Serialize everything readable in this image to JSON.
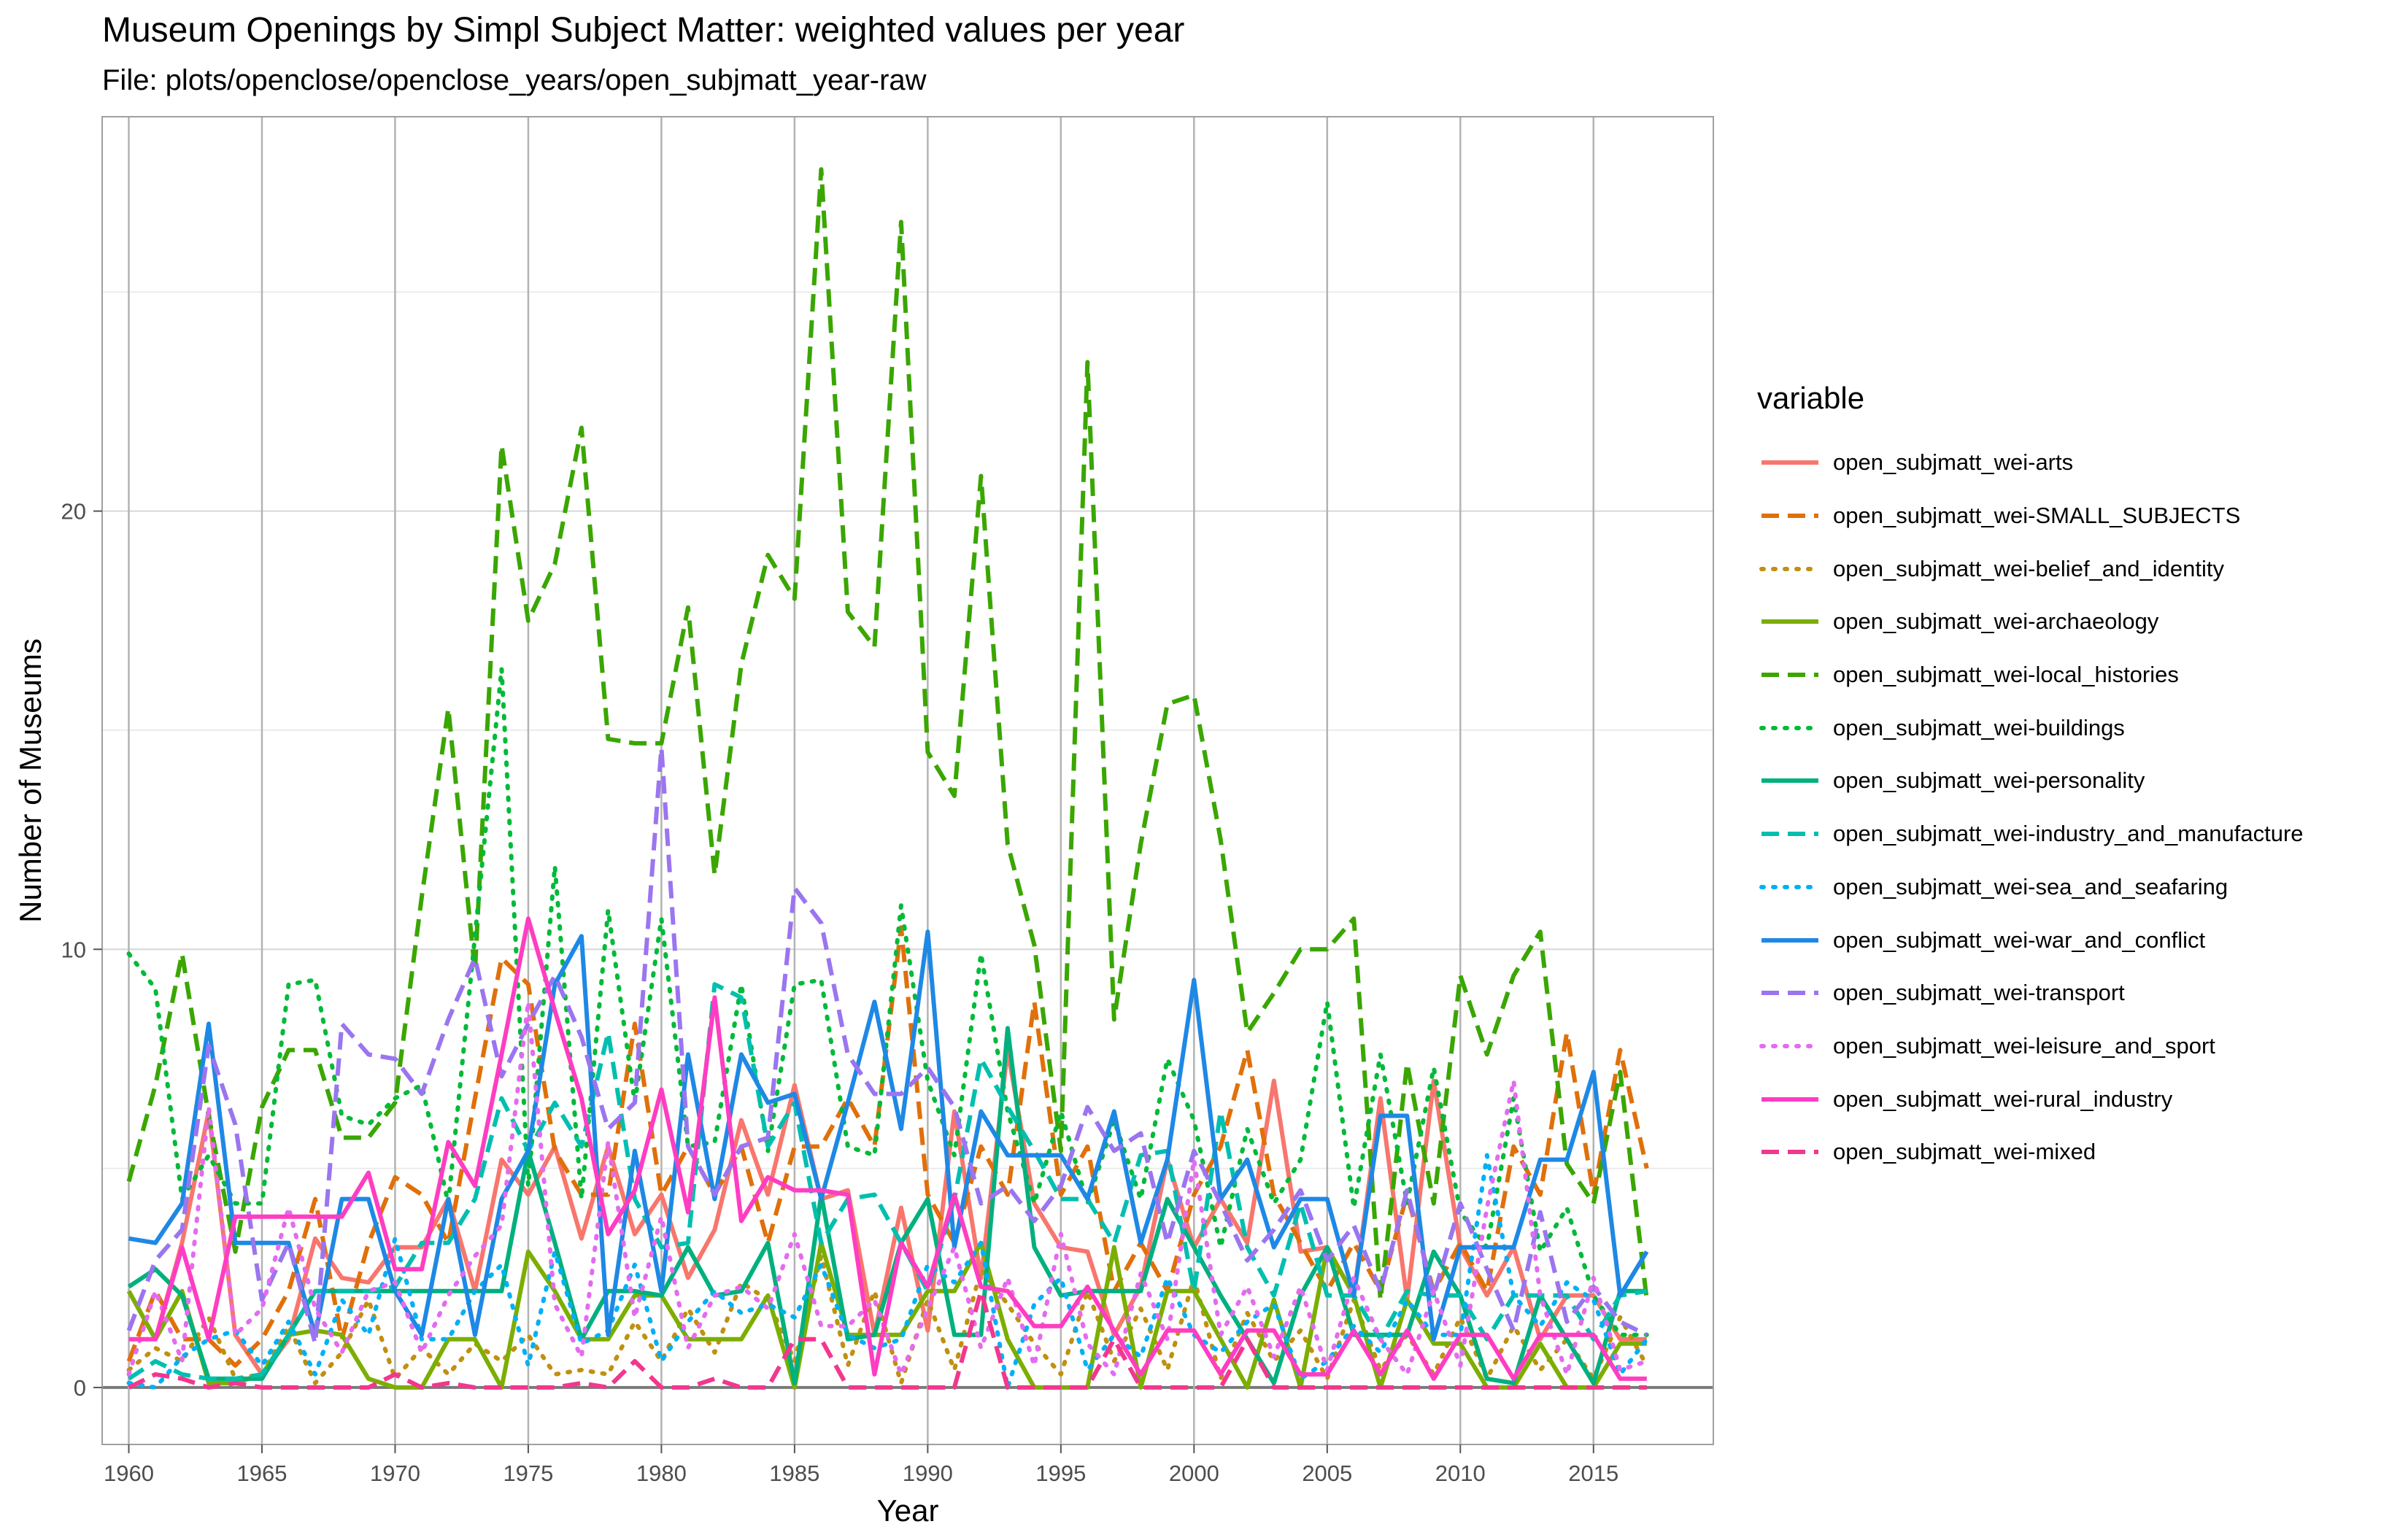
{
  "title": "Museum Openings by Simpl Subject Matter: weighted values per year",
  "subtitle": "File: plots/openclose/openclose_years/open_subjmatt_year-raw",
  "legend_title": "variable",
  "chart_data": {
    "type": "line",
    "xlabel": "Year",
    "ylabel": "Number of Museums",
    "xlim": [
      1959,
      2019.5
    ],
    "ylim": [
      -1.3,
      29
    ],
    "xticks": [
      1960,
      1965,
      1970,
      1975,
      1980,
      1985,
      1990,
      1995,
      2000,
      2005,
      2010,
      2015
    ],
    "yticks": [
      0,
      10,
      20
    ],
    "grid": true,
    "legend_position": "right",
    "x": [
      1960,
      1961,
      1962,
      1963,
      1964,
      1965,
      1966,
      1967,
      1968,
      1969,
      1970,
      1971,
      1972,
      1973,
      1974,
      1975,
      1976,
      1977,
      1978,
      1979,
      1980,
      1981,
      1982,
      1983,
      1984,
      1985,
      1986,
      1987,
      1988,
      1989,
      1990,
      1991,
      1992,
      1993,
      1994,
      1995,
      1996,
      1997,
      1998,
      1999,
      2000,
      2001,
      2002,
      2003,
      2004,
      2005,
      2006,
      2007,
      2008,
      2009,
      2010,
      2011,
      2012,
      2013,
      2014,
      2015,
      2016,
      2017
    ],
    "series": [
      {
        "name": "open_subjmatt_wei-arts",
        "color": "#F8766D",
        "dash": "solid",
        "values": [
          2.2,
          1.1,
          3.3,
          6.3,
          1.2,
          0.3,
          1.1,
          3.4,
          2.5,
          2.4,
          3.2,
          3.2,
          4.3,
          2.2,
          5.2,
          4.4,
          5.5,
          3.4,
          5.5,
          3.5,
          4.4,
          2.5,
          3.6,
          6.1,
          4.4,
          6.9,
          4.3,
          4.5,
          1.2,
          4.1,
          1.3,
          6.3,
          2.5,
          7.7,
          4.2,
          3.2,
          3.1,
          1.2,
          2.3,
          5.2,
          3.2,
          4.3,
          3.3,
          7.0,
          3.1,
          3.2,
          2.1,
          6.6,
          2.0,
          7.0,
          3.2,
          2.1,
          3.2,
          1.1,
          2.1,
          2.1,
          1.1,
          1.1
        ]
      },
      {
        "name": "open_subjmatt_wei-SMALL_SUBJECTS",
        "color": "#E0700A",
        "dash": "long",
        "values": [
          0.6,
          2.2,
          1.1,
          1.1,
          0.5,
          1.1,
          2.2,
          4.3,
          1.1,
          3.3,
          4.8,
          4.4,
          3.3,
          6.6,
          9.8,
          9.2,
          5.4,
          4.4,
          4.4,
          8.3,
          4.4,
          5.5,
          4.4,
          5.5,
          3.3,
          5.5,
          5.5,
          6.6,
          5.5,
          10.5,
          4.4,
          3.3,
          5.5,
          4.4,
          8.8,
          4.4,
          5.5,
          2.2,
          3.3,
          2.2,
          4.4,
          5.5,
          7.7,
          4.4,
          3.3,
          2.2,
          3.3,
          2.2,
          4.4,
          2.2,
          3.3,
          2.2,
          5.5,
          4.4,
          8.1,
          4.4,
          7.7,
          5.0
        ]
      },
      {
        "name": "open_subjmatt_wei-belief_and_identity",
        "color": "#C09010",
        "dash": "dotted",
        "values": [
          0.4,
          0.9,
          0.6,
          1.6,
          0.2,
          0.3,
          1.4,
          0.1,
          0.8,
          2.0,
          0.2,
          0.9,
          0.3,
          1.0,
          0.6,
          1.2,
          0.3,
          0.4,
          0.3,
          1.5,
          0.6,
          1.8,
          0.8,
          2.4,
          2.0,
          0.6,
          3.0,
          0.5,
          2.2,
          0.1,
          2.0,
          0.4,
          2.7,
          1.9,
          1.0,
          0.3,
          2.2,
          0.6,
          1.8,
          0.4,
          2.5,
          0.2,
          1.7,
          0.6,
          1.3,
          0.2,
          2.0,
          0.4,
          1.2,
          0.3,
          1.6,
          0.2,
          1.4,
          0.4,
          1.1,
          0.2,
          1.6,
          0.5
        ]
      },
      {
        "name": "open_subjmatt_wei-archaeology",
        "color": "#7CAE00",
        "dash": "solid",
        "values": [
          2.2,
          1.1,
          2.2,
          0.1,
          0.1,
          0.3,
          1.2,
          1.3,
          1.2,
          0.2,
          0.0,
          0.0,
          1.1,
          1.1,
          0.0,
          3.1,
          2.2,
          1.1,
          1.1,
          2.1,
          2.1,
          1.1,
          1.1,
          1.1,
          2.1,
          0.0,
          3.3,
          1.2,
          1.2,
          1.2,
          2.2,
          2.2,
          3.3,
          1.1,
          0.0,
          0.0,
          0.0,
          3.2,
          0.0,
          2.2,
          2.2,
          1.1,
          0.0,
          2.0,
          0.0,
          3.2,
          2.1,
          0.0,
          2.0,
          1.0,
          1.0,
          0.0,
          0.0,
          1.0,
          0.0,
          0.0,
          1.0,
          1.0
        ]
      },
      {
        "name": "open_subjmatt_wei-local_histories",
        "color": "#3AA600",
        "dash": "long",
        "values": [
          4.7,
          6.9,
          9.9,
          6.2,
          3.1,
          6.4,
          7.7,
          7.7,
          5.7,
          5.7,
          6.5,
          11.2,
          15.5,
          9.5,
          21.5,
          17.5,
          18.8,
          21.9,
          14.8,
          14.7,
          14.7,
          17.8,
          11.7,
          16.5,
          19.0,
          18.0,
          27.8,
          17.7,
          16.9,
          26.6,
          14.5,
          13.5,
          20.8,
          12.4,
          10.1,
          5.4,
          23.4,
          8.4,
          12.4,
          15.6,
          15.8,
          12.5,
          8.1,
          9.0,
          10.0,
          10.0,
          10.7,
          2.0,
          7.4,
          4.2,
          9.4,
          7.6,
          9.4,
          10.4,
          5.1,
          4.2,
          7.2,
          2.0
        ]
      },
      {
        "name": "open_subjmatt_wei-buildings",
        "color": "#00BA38",
        "dash": "dotted",
        "values": [
          9.9,
          9.1,
          4.3,
          5.3,
          4.2,
          4.2,
          9.2,
          9.3,
          6.2,
          6.0,
          6.6,
          6.9,
          4.2,
          10.3,
          16.4,
          4.6,
          11.9,
          4.3,
          10.9,
          6.5,
          10.7,
          5.5,
          5.6,
          9.2,
          5.4,
          9.2,
          9.3,
          5.5,
          5.3,
          11.0,
          7.0,
          5.3,
          9.9,
          6.3,
          4.2,
          6.3,
          4.2,
          6.1,
          4.3,
          7.5,
          6.1,
          3.2,
          5.9,
          4.2,
          5.2,
          8.8,
          4.1,
          7.6,
          4.2,
          7.3,
          4.0,
          3.2,
          6.6,
          3.1,
          4.1,
          2.1,
          1.2,
          1.2
        ]
      },
      {
        "name": "open_subjmatt_wei-personality",
        "color": "#00B07E",
        "dash": "solid",
        "values": [
          2.3,
          2.7,
          2.1,
          0.2,
          0.2,
          0.2,
          1.2,
          2.2,
          2.2,
          2.2,
          2.2,
          2.2,
          2.2,
          2.2,
          2.2,
          5.4,
          3.3,
          1.1,
          2.2,
          2.2,
          2.1,
          3.2,
          2.1,
          2.2,
          3.3,
          0.1,
          4.4,
          1.1,
          1.2,
          3.3,
          4.3,
          1.2,
          1.2,
          8.2,
          3.2,
          2.1,
          2.2,
          2.2,
          2.2,
          4.3,
          3.2,
          2.1,
          1.1,
          0.1,
          2.1,
          3.2,
          1.2,
          1.2,
          1.2,
          3.1,
          2.1,
          0.2,
          0.1,
          2.1,
          1.1,
          0.1,
          2.2,
          2.2
        ]
      },
      {
        "name": "open_subjmatt_wei-industry_and_manufacture",
        "color": "#00BFAF",
        "dash": "long",
        "values": [
          0.2,
          0.6,
          0.3,
          0.2,
          0.2,
          0.3,
          1.2,
          2.2,
          2.2,
          2.2,
          2.3,
          3.3,
          3.3,
          4.3,
          6.6,
          5.4,
          6.5,
          5.5,
          8.1,
          4.3,
          3.2,
          3.3,
          9.2,
          8.9,
          5.5,
          6.5,
          3.3,
          4.3,
          4.4,
          3.3,
          2.2,
          4.3,
          7.5,
          6.4,
          5.4,
          4.3,
          4.3,
          3.3,
          5.3,
          5.4,
          2.2,
          6.3,
          3.2,
          2.1,
          4.2,
          2.1,
          2.1,
          1.1,
          2.2,
          2.1,
          2.1,
          1.1,
          2.1,
          2.1,
          2.1,
          1.1,
          2.1,
          2.2
        ]
      },
      {
        "name": "open_subjmatt_wei-sea_and_seafaring",
        "color": "#00B0F6",
        "dash": "dotted",
        "values": [
          0.1,
          0.0,
          0.7,
          1.1,
          1.3,
          0.5,
          1.5,
          0.3,
          2.0,
          1.2,
          3.4,
          1.1,
          1.1,
          2.2,
          2.8,
          0.5,
          3.1,
          1.0,
          1.3,
          2.8,
          0.6,
          1.5,
          2.2,
          1.7,
          1.9,
          1.6,
          2.8,
          1.2,
          0.9,
          1.1,
          2.8,
          2.4,
          3.3,
          0.0,
          1.9,
          2.5,
          0.4,
          1.2,
          0.7,
          2.5,
          1.2,
          0.8,
          1.5,
          1.9,
          0.2,
          0.6,
          1.4,
          0.8,
          2.0,
          1.2,
          1.2,
          5.3,
          2.1,
          1.4,
          2.4,
          2.0,
          0.3,
          1.1
        ]
      },
      {
        "name": "open_subjmatt_wei-war_and_conflict",
        "color": "#1E88E5",
        "dash": "solid",
        "values": [
          3.4,
          3.3,
          4.2,
          8.3,
          3.3,
          3.3,
          3.3,
          1.2,
          4.3,
          4.3,
          2.2,
          1.2,
          4.3,
          1.2,
          4.3,
          5.4,
          9.2,
          10.3,
          1.2,
          5.4,
          2.2,
          7.6,
          4.3,
          7.6,
          6.5,
          6.7,
          4.3,
          6.5,
          8.8,
          5.9,
          10.4,
          3.2,
          6.3,
          5.3,
          5.3,
          5.3,
          4.3,
          6.3,
          3.3,
          5.2,
          9.3,
          4.3,
          5.2,
          3.2,
          4.3,
          4.3,
          2.1,
          6.2,
          6.2,
          1.1,
          3.2,
          3.2,
          3.2,
          5.2,
          5.2,
          7.2,
          2.1,
          3.1
        ]
      },
      {
        "name": "open_subjmatt_wei-transport",
        "color": "#9B75F0",
        "dash": "long",
        "values": [
          1.3,
          2.9,
          3.6,
          7.8,
          6.0,
          2.0,
          3.3,
          1.0,
          8.3,
          7.6,
          7.5,
          6.7,
          8.4,
          9.8,
          7.1,
          8.3,
          9.4,
          8.0,
          5.9,
          6.5,
          14.6,
          5.5,
          4.4,
          5.5,
          5.7,
          11.4,
          10.6,
          7.6,
          6.7,
          6.7,
          7.3,
          6.4,
          4.2,
          4.6,
          3.8,
          4.6,
          6.4,
          5.4,
          5.8,
          3.3,
          5.4,
          4.2,
          2.9,
          3.6,
          4.5,
          2.9,
          3.7,
          2.2,
          4.5,
          2.1,
          4.2,
          2.7,
          1.3,
          4.0,
          1.5,
          2.3,
          1.5,
          1.2
        ]
      },
      {
        "name": "open_subjmatt_wei-leisure_and_sport",
        "color": "#E46BF0",
        "dash": "dotted",
        "values": [
          0.3,
          2.2,
          0.6,
          6.4,
          1.2,
          1.8,
          4.1,
          1.8,
          0.8,
          2.2,
          2.4,
          0.8,
          2.1,
          3.0,
          3.7,
          8.8,
          1.9,
          0.7,
          5.6,
          1.6,
          3.9,
          0.9,
          2.1,
          2.3,
          1.8,
          3.5,
          1.4,
          1.4,
          2.0,
          0.3,
          1.8,
          3.2,
          0.9,
          2.5,
          0.5,
          3.5,
          1.0,
          0.3,
          2.6,
          1.1,
          5.2,
          1.2,
          2.3,
          0.7,
          2.3,
          0.4,
          2.5,
          1.1,
          0.3,
          2.2,
          0.5,
          4.1,
          7.0,
          2.1,
          0.3,
          2.5,
          0.4,
          0.6
        ]
      },
      {
        "name": "open_subjmatt_wei-rural_industry",
        "color": "#FF3DC2",
        "dash": "solid",
        "values": [
          1.1,
          1.1,
          3.2,
          1.1,
          3.9,
          3.9,
          3.9,
          3.9,
          3.9,
          4.9,
          2.7,
          2.7,
          5.6,
          4.6,
          7.6,
          10.7,
          8.6,
          6.6,
          3.5,
          4.5,
          6.8,
          4.0,
          8.9,
          3.8,
          4.8,
          4.5,
          4.5,
          4.4,
          0.3,
          3.3,
          2.3,
          4.4,
          2.3,
          2.2,
          1.4,
          1.4,
          2.3,
          1.3,
          0.3,
          1.3,
          1.3,
          0.3,
          1.3,
          1.3,
          0.3,
          0.3,
          1.3,
          0.3,
          1.3,
          0.2,
          1.2,
          1.2,
          0.2,
          1.2,
          1.2,
          1.2,
          0.2,
          0.2
        ]
      },
      {
        "name": "open_subjmatt_wei-mixed",
        "color": "#F2378E",
        "dash": "long",
        "values": [
          0.0,
          0.3,
          0.2,
          0.0,
          0.1,
          0.0,
          0.0,
          0.0,
          0.0,
          0.0,
          0.3,
          0.0,
          0.1,
          0.0,
          0.0,
          0.0,
          0.0,
          0.1,
          0.0,
          0.6,
          0.0,
          0.0,
          0.2,
          0.0,
          0.0,
          1.1,
          1.1,
          0.0,
          0.0,
          0.0,
          0.0,
          0.0,
          2.2,
          0.0,
          0.0,
          0.0,
          0.0,
          1.1,
          0.0,
          0.0,
          0.0,
          0.0,
          1.1,
          0.0,
          0.0,
          0.0,
          0.0,
          0.0,
          0.0,
          0.0,
          0.0,
          0.0,
          0.0,
          0.0,
          0.0,
          0.0,
          0.0,
          0.0
        ]
      }
    ]
  }
}
